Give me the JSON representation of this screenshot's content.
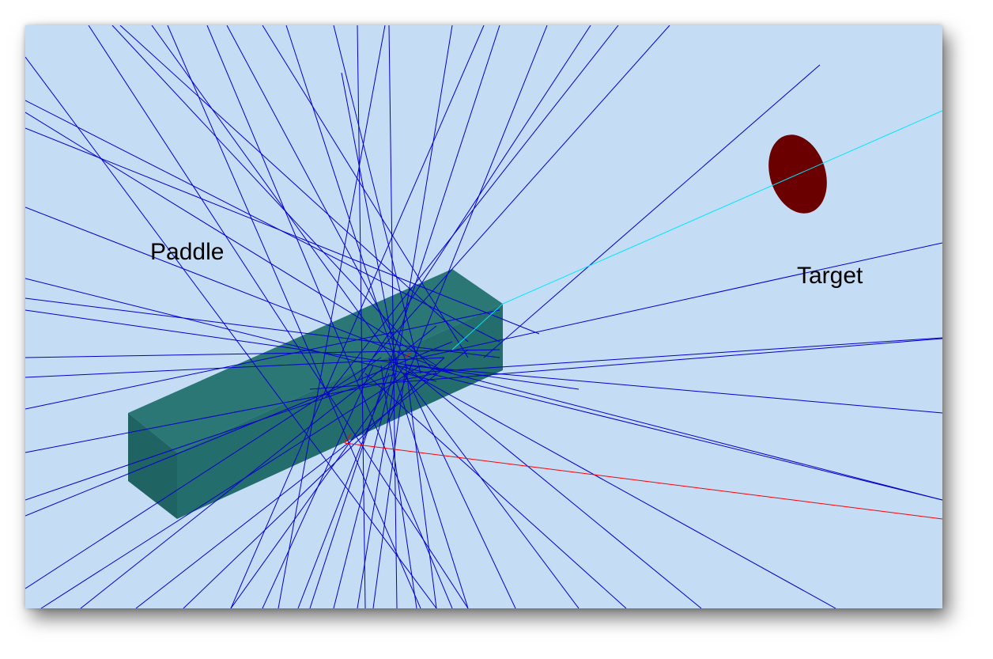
{
  "labels": {
    "paddle": "Paddle",
    "target": "Target"
  },
  "colors": {
    "background": "#c5dcf5",
    "paddle_front": "#236d6c",
    "paddle_side": "#1c5e5d",
    "paddle_top": "#2a7776",
    "target": "#6b0000",
    "track_neutral": "#0000cc",
    "track_positive": "#00e5ff",
    "track_negative": "#ff0000"
  },
  "objects": [
    {
      "name": "paddle",
      "shape": "rectangular-bar"
    },
    {
      "name": "target",
      "shape": "disc"
    }
  ],
  "tracks": [
    {
      "type": "neutral",
      "color": "blue"
    },
    {
      "type": "positive",
      "color": "cyan"
    },
    {
      "type": "negative",
      "color": "red"
    }
  ]
}
